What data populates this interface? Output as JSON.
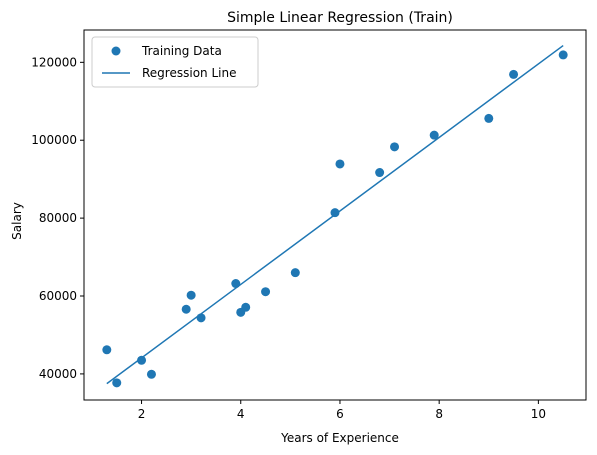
{
  "chart_data": {
    "type": "scatter",
    "title": "Simple Linear Regression (Train)",
    "xlabel": "Years of Experience",
    "ylabel": "Salary",
    "xlim": [
      0.84,
      10.96
    ],
    "ylim": [
      33300,
      128300
    ],
    "xticks": [
      2,
      4,
      6,
      8,
      10
    ],
    "yticks": [
      40000,
      60000,
      80000,
      100000,
      120000
    ],
    "xtick_labels": [
      "2",
      "4",
      "6",
      "8",
      "10"
    ],
    "ytick_labels": [
      "40000",
      "60000",
      "80000",
      "100000",
      "120000"
    ],
    "grid": false,
    "legend_position": "upper-left",
    "series": [
      {
        "name": "Training Data",
        "kind": "scatter",
        "color": "#1f77b4",
        "points": [
          [
            1.3,
            46200
          ],
          [
            1.5,
            37700
          ],
          [
            2.0,
            43500
          ],
          [
            2.2,
            39900
          ],
          [
            2.9,
            56600
          ],
          [
            3.0,
            60200
          ],
          [
            3.2,
            54400
          ],
          [
            3.9,
            63200
          ],
          [
            4.0,
            55800
          ],
          [
            4.1,
            57100
          ],
          [
            4.5,
            61100
          ],
          [
            5.1,
            66000
          ],
          [
            5.9,
            81400
          ],
          [
            6.0,
            93900
          ],
          [
            6.8,
            91700
          ],
          [
            7.1,
            98300
          ],
          [
            7.9,
            101300
          ],
          [
            9.0,
            105600
          ],
          [
            9.5,
            116900
          ],
          [
            10.5,
            121900
          ]
        ]
      },
      {
        "name": "Regression Line",
        "kind": "line",
        "color": "#1f77b4",
        "points": [
          [
            1.3,
            37500
          ],
          [
            10.5,
            124300
          ]
        ]
      }
    ]
  }
}
